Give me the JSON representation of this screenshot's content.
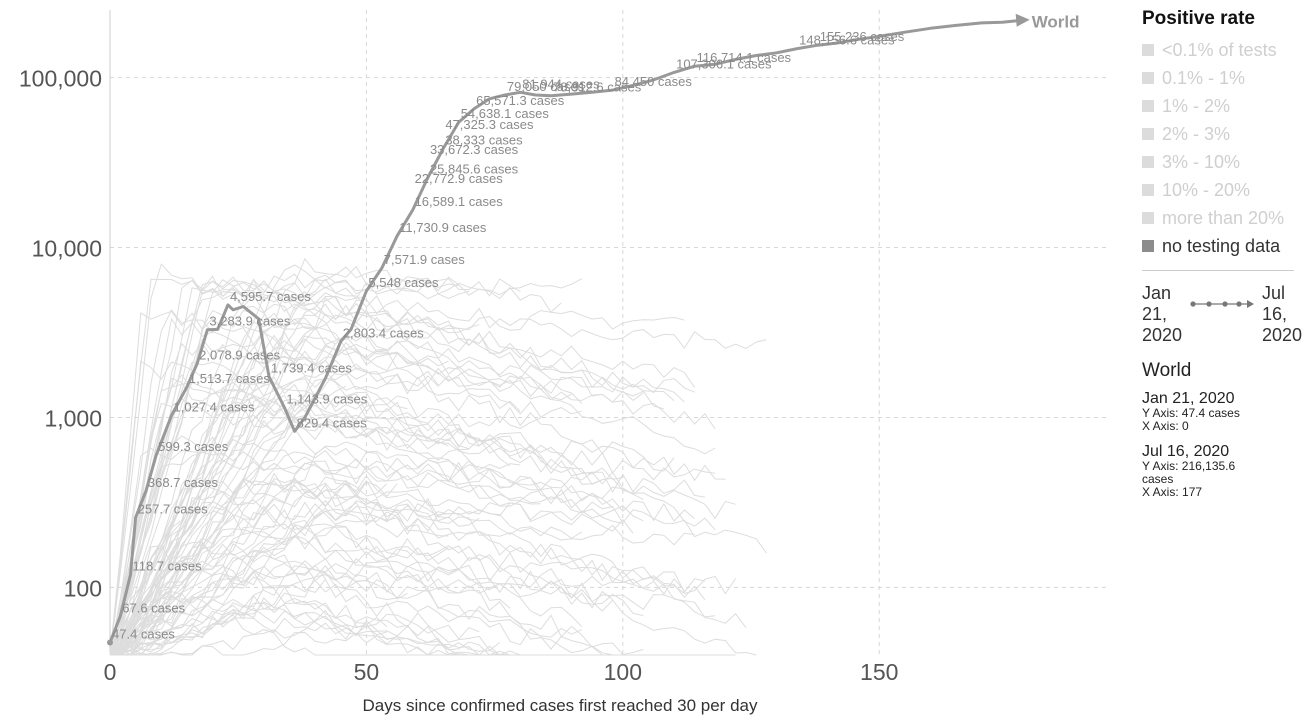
{
  "chart_data": {
    "type": "line",
    "xlabel": "Days since confirmed cases first reached 30 per day",
    "x_ticks": [
      0,
      50,
      100,
      150
    ],
    "x_tick_labels": [
      "0",
      "50",
      "100",
      "150"
    ],
    "y_ticks": [
      100,
      1000,
      10000,
      100000
    ],
    "y_tick_labels": [
      "100",
      "1,000",
      "10,000",
      "100,000"
    ],
    "xlim": [
      0,
      195
    ],
    "ylim": [
      40,
      250000
    ],
    "y_scale": "log",
    "grid": true,
    "highlight_color": "#999999",
    "background_series_color": "#dddddd",
    "highlight_series": {
      "name": "World",
      "x": [
        0,
        2,
        4,
        5,
        7,
        9,
        12,
        15,
        17,
        19,
        21,
        23,
        24,
        26,
        29,
        31,
        34,
        36,
        38,
        40,
        42,
        45,
        47,
        50,
        53,
        56,
        59,
        62,
        65,
        68,
        71,
        74,
        77,
        80,
        83,
        86,
        90,
        94,
        98,
        102,
        106,
        110,
        114,
        118,
        122,
        126,
        130,
        134,
        138,
        142,
        146,
        150,
        155,
        160,
        165,
        170,
        174,
        177
      ],
      "y": [
        47.4,
        67.6,
        118.7,
        257.7,
        368.7,
        599.3,
        1027.4,
        1513.7,
        2078.9,
        3283.9,
        3300,
        4595.7,
        4300,
        4500,
        3800,
        1739.4,
        1143.9,
        829.4,
        1000,
        1300,
        1700,
        2803.4,
        3300,
        5548,
        7571.9,
        11730.9,
        16589.1,
        25845.6,
        38333,
        54638.1,
        65571.3,
        75000,
        79050,
        81944,
        79000,
        78312.6,
        80000,
        82000,
        84450,
        90000,
        97000,
        107306.1,
        116714.1,
        120000,
        128000,
        135000,
        140000,
        148156.6,
        155236,
        160000,
        168000,
        175000,
        185000,
        195000,
        203000,
        210000,
        212000,
        216135.6
      ]
    },
    "annotations": [
      {
        "x": 0,
        "y": 47.4,
        "text": "47.4 cases"
      },
      {
        "x": 2,
        "y": 67.6,
        "text": "67.6 cases"
      },
      {
        "x": 4,
        "y": 118.7,
        "text": "118.7 cases"
      },
      {
        "x": 5,
        "y": 257.7,
        "text": "257.7 cases"
      },
      {
        "x": 7,
        "y": 368.7,
        "text": "368.7 cases"
      },
      {
        "x": 9,
        "y": 599.3,
        "text": "599.3 cases"
      },
      {
        "x": 12,
        "y": 1027.4,
        "text": "1,027.4 cases"
      },
      {
        "x": 15,
        "y": 1513.7,
        "text": "1,513.7 cases"
      },
      {
        "x": 17,
        "y": 2078.9,
        "text": "2,078.9 cases"
      },
      {
        "x": 19,
        "y": 3283.9,
        "text": "3,283.9 cases"
      },
      {
        "x": 23,
        "y": 4595.7,
        "text": "4,595.7 cases"
      },
      {
        "x": 31,
        "y": 1739.4,
        "text": "1,739.4 cases"
      },
      {
        "x": 34,
        "y": 1143.9,
        "text": "1,143.9 cases"
      },
      {
        "x": 36,
        "y": 829.4,
        "text": "829.4 cases"
      },
      {
        "x": 45,
        "y": 2803.4,
        "text": "2,803.4 cases"
      },
      {
        "x": 50,
        "y": 5548,
        "text": "5,548 cases"
      },
      {
        "x": 53,
        "y": 7571.9,
        "text": "7,571.9 cases"
      },
      {
        "x": 56,
        "y": 11730.9,
        "text": "11,730.9 cases"
      },
      {
        "x": 59,
        "y": 16589.1,
        "text": "16,589.1 cases"
      },
      {
        "x": 59,
        "y": 22772.9,
        "text": "22,772.9 cases"
      },
      {
        "x": 62,
        "y": 25845.6,
        "text": "25,845.6 cases"
      },
      {
        "x": 62,
        "y": 33672.3,
        "text": "33,672.3 cases"
      },
      {
        "x": 65,
        "y": 38333,
        "text": "38,333 cases"
      },
      {
        "x": 65,
        "y": 47325.3,
        "text": "47,325.3 cases"
      },
      {
        "x": 68,
        "y": 54638.1,
        "text": "54,638.1 cases"
      },
      {
        "x": 71,
        "y": 65571.3,
        "text": "65,571.3 cases"
      },
      {
        "x": 77,
        "y": 79050,
        "text": "79,050 cases"
      },
      {
        "x": 80,
        "y": 81944,
        "text": "81,944 cases"
      },
      {
        "x": 86,
        "y": 78312.6,
        "text": "78,312.6 cases"
      },
      {
        "x": 98,
        "y": 84450,
        "text": "84,450 cases"
      },
      {
        "x": 110,
        "y": 107306.1,
        "text": "107,306.1 cases"
      },
      {
        "x": 114,
        "y": 116714.1,
        "text": "116,714.1 cases"
      },
      {
        "x": 134,
        "y": 148156.6,
        "text": "148,156.6 cases"
      },
      {
        "x": 138,
        "y": 155236,
        "text": "155,236 cases"
      }
    ],
    "end_label": "World"
  },
  "legend": {
    "title": "Positive rate",
    "items": [
      {
        "label": "<0.1% of tests",
        "active": false
      },
      {
        "label": "0.1% - 1%",
        "active": false
      },
      {
        "label": "1% - 2%",
        "active": false
      },
      {
        "label": "2% - 3%",
        "active": false
      },
      {
        "label": "3% - 10%",
        "active": false
      },
      {
        "label": "10% - 20%",
        "active": false
      },
      {
        "label": "more than 20%",
        "active": false
      },
      {
        "label": "no testing data",
        "active": true
      }
    ]
  },
  "timeline": {
    "start_lines": [
      "Jan",
      "21,",
      "2020"
    ],
    "end_lines": [
      "Jul",
      "16,",
      "2020"
    ]
  },
  "tooltip": {
    "entity": "World",
    "rows": [
      {
        "date": "Jan 21, 2020",
        "lines": [
          "Y Axis: 47.4 cases",
          "X Axis: 0"
        ]
      },
      {
        "date": "Jul 16, 2020",
        "lines": [
          "Y Axis: 216,135.6",
          "cases",
          "X Axis: 177"
        ]
      }
    ]
  }
}
